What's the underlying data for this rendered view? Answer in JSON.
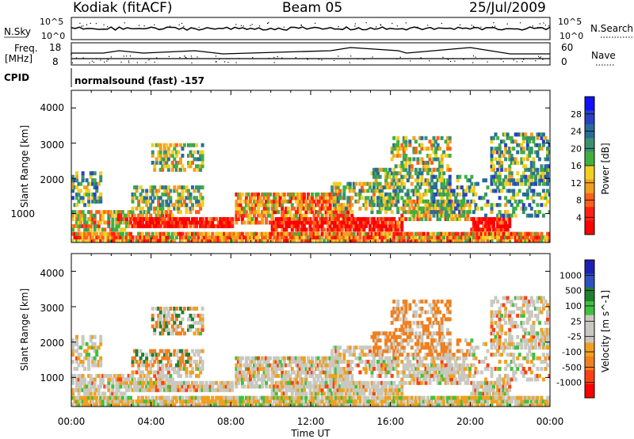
{
  "header": {
    "station": "Kodiak (fitACF)",
    "beam": "Beam 05",
    "date": "25/Jul/2009"
  },
  "status_panels": {
    "nsky_label": "N.Sky",
    "nsky_ticks": [
      "10^5",
      "10^0"
    ],
    "nsearch_label": "N.Search",
    "nsearch_ticks": [
      "10^5",
      "10^0"
    ],
    "freq_label_line1": "Freq.",
    "freq_label_line2": "[MHz]",
    "freq_ticks": [
      "18",
      "8"
    ],
    "nave_label": "Nave",
    "nave_ticks": [
      "60",
      "0"
    ],
    "cpid_label": "CPID",
    "cpid_text": "normalsound (fast) -157"
  },
  "colors": {
    "power_scale": [
      "#1010ff",
      "#2a40c0",
      "#2a6a9a",
      "#3a9070",
      "#40b040",
      "#f0d020",
      "#f0a020",
      "#ff6018",
      "#ff2010",
      "#ff0000"
    ],
    "velocity_scale": [
      "#2020b0",
      "#3050c0",
      "#208030",
      "#40c040",
      "#c8c8c0",
      "#c8c8c0",
      "#f0a020",
      "#f08020",
      "#ff4010",
      "#ff0000"
    ]
  },
  "chart_data": [
    {
      "type": "heatmap",
      "panel": "power",
      "xlabel": "",
      "ylabel": "Slant Range [km]",
      "x_range_hours": [
        0,
        24
      ],
      "ylim": [
        180,
        4500
      ],
      "y_ticks": [
        "1000",
        "2000",
        "3000",
        "4000"
      ],
      "colorbar": {
        "label": "Power [dB]",
        "ticks": [
          "28",
          "24",
          "20",
          "16",
          "12",
          "8",
          "4"
        ]
      }
    },
    {
      "type": "heatmap",
      "panel": "velocity",
      "xlabel": "Time UT",
      "ylabel": "Slant Range [km]",
      "x_ticks": [
        "00:00",
        "04:00",
        "08:00",
        "12:00",
        "16:00",
        "20:00",
        "00:00"
      ],
      "x_range_hours": [
        0,
        24
      ],
      "ylim": [
        180,
        4500
      ],
      "y_ticks": [
        "1000",
        "2000",
        "3000",
        "4000"
      ],
      "colorbar": {
        "label": "Velocity [m s^-1]",
        "ticks": [
          "1000",
          "500",
          "100",
          "25",
          "-25",
          "-100",
          "-500",
          "-1000"
        ]
      }
    }
  ]
}
